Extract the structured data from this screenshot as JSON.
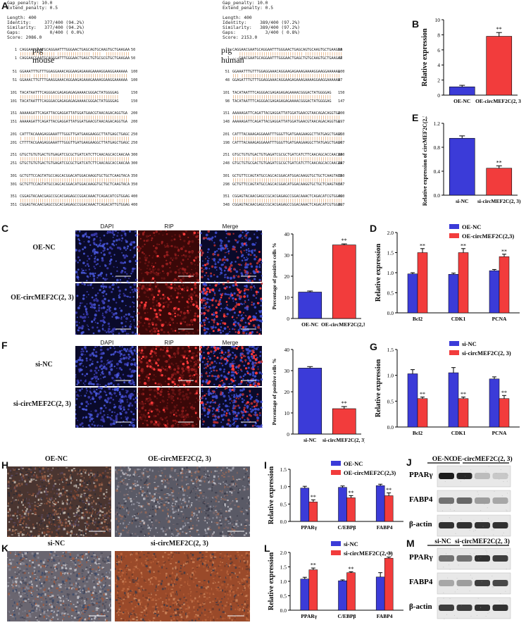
{
  "panels": {
    "A": "A",
    "B": "B",
    "C": "C",
    "D": "D",
    "E": "E",
    "F": "F",
    "G": "G",
    "H": "H",
    "I": "I",
    "J": "J",
    "K": "K",
    "L": "L",
    "M": "M"
  },
  "alignment_left": {
    "header": [
      "Gap_penalty: 10.0",
      "Extend_penalty: 0.5",
      "",
      "Length: 400",
      "Identity:     377/400 (94.2%)",
      "Similarity:   377/400 (94.2%)",
      "Gaps:           0/400 ( 0.0%)",
      "Score: 2086.0"
    ],
    "species_a": "pig",
    "species_b": "mouse",
    "blocks": [
      {
        "s1": "1",
        "e1": "50",
        "s2": "1",
        "e2": "50",
        "top": "CAGGAACGAATGCAGGAATTTGGGAACTGAGCAGTGCAAGTGCTGAAGAA",
        "bot": "CAGGAACGAATGCAGGGATTTGGGAACTGAGCTGTGCGCGTGCTGAAGAA"
      },
      {
        "s1": "51",
        "e1": "100",
        "s2": "51",
        "e2": "100",
        "top": "GGAAATTTGTTTGGAGGAAACAGGAAGAGAAAGAAAAGGAAGGAAAAAA",
        "bot": "GGAAACTTGTTTGAAGGAAACAGGAAGAGAAAGAAAAGGAAGGAAAAAA"
      },
      {
        "s1": "101",
        "e1": "150",
        "s2": "101",
        "e2": "150",
        "top": "TACATAATTTCAGGGACGAGAGAGAGAAAACGGGACTATGGGGAG",
        "bot": "TACATAATTTCAGGGACGAGAGAGAGAAAACGGGACTATGGGGAG"
      },
      {
        "s1": "151",
        "e1": "200",
        "s2": "151",
        "e2": "200",
        "top": "AAAAAGATTCAGATTACGAGGATTATGGATGAACGTAACAGACAGGTGA",
        "bot": "AAAAAGATTCAGATTACGAGGATTATGGATGAACGTAACAGACAGGTGA"
      },
      {
        "s1": "201",
        "e1": "250",
        "s2": "201",
        "e2": "250",
        "top": "CATTTACAAAGAGGAAATTTGGGTTGATGAAGAAGGCTTATGAGCTGAGC",
        "bot": "CTTTTACGAAGAGGAAATTTGGGTTGATGAAGAAGGCTTATGAGCTGAGC"
      },
      {
        "s1": "251",
        "e1": "300",
        "s2": "251",
        "e2": "300",
        "top": "GTGCTGTGTGACTGTGAGATCGCGCTGATCATCTTCAACAGCACCAACAA",
        "bot": "GTGCTGTGTGACTGTGAGATCGCGCTGATCATCTTCAACAGCACCAACAA"
      },
      {
        "s1": "301",
        "e1": "350",
        "s2": "301",
        "e2": "350",
        "top": "GCTGTTCCAGTATGCCAGCACGGACATGGACAAGGTGCTGCTCAAGTACA",
        "bot": "GCTGTTCCAGTATGCCAGCACGGACATGGACAAGGTGCTGCTCAAGTACA"
      },
      {
        "s1": "351",
        "e1": "400",
        "s2": "351",
        "e2": "400",
        "top": "CGGAGTACAACGAGCCGCACGAGAGCCGGACAAACTCAGACATCGTGGAG",
        "bot": "CGGAGTACAACGAGCCGCACGAGAGCCGGACAAACTCAGACATTGTGGAG"
      }
    ]
  },
  "alignment_right": {
    "header": [
      "Gap_penalty: 10.0",
      "Extend_penalty: 0.5",
      "",
      "Length: 400",
      "Identity:     389/400 (97.2%)",
      "Similarity:   389/400 (97.2%)",
      "Gaps:           3/400 ( 0.8%)",
      "Score: 2153.0"
    ],
    "species_a": "pig",
    "species_b": "human",
    "blocks": [
      {
        "s1": "1",
        "e1": "50",
        "s2": "1",
        "e2": "47",
        "top": "CAGGAACGAATGCAGGAATTTGGGAACTGAGCAGTGCAAGTGCTGAAGAA",
        "bot": "---GAACGAATGCAGGAATTTGGGAACTGAGCTGTGCAAGTGCTGAAGAA"
      },
      {
        "s1": "51",
        "e1": "100",
        "s2": "48",
        "e2": "97",
        "top": "GGAAATTTGTTTGGAGGAAACAGGAAGAGAAAGAAAAGGAAGGAAAAAA",
        "bot": "GGAGATTTGTTTGGAGGAAACAGGAAGAGAAAGAAAAGGAAGGAAAAAA"
      },
      {
        "s1": "101",
        "e1": "150",
        "s2": "98",
        "e2": "147",
        "top": "TACATAATTTCAGGGACGAGAGAGAGAAAACGGGACTATGGGGAG",
        "bot": "TACATAATTTCAGGGACGAGAGAGAGAAAACGGGACTATGGGGAG"
      },
      {
        "s1": "151",
        "e1": "200",
        "s2": "148",
        "e2": "197",
        "top": "AAAAAGATTCAGATTACGAGGATTATGGATGAACGTAACAGACAGGTGA",
        "bot": "AAAAAGATTCAGATTACGAGGATTATGGATGAACGTAACAGACAGGTGA"
      },
      {
        "s1": "201",
        "e1": "250",
        "s2": "198",
        "e2": "247",
        "top": "CATTTACAAAGAGGAAATTTGGGTTGATGAAGAAGGCTTATGAGCTGAGC",
        "bot": "CATTTACAAAGAGGAAATTTGGGTTGATGAAGAAGGCTTATGAGCTGAGC"
      },
      {
        "s1": "251",
        "e1": "300",
        "s2": "248",
        "e2": "297",
        "top": "GTGCTGTGTGACTGTGAGATCGCGCTGATCATCTTCAACAGCACCAACAA",
        "bot": "GTGCTGTGCGACTGTGAGATCGCGCTGATCATCTTCAACAGCACCAACAA"
      },
      {
        "s1": "301",
        "e1": "350",
        "s2": "298",
        "e2": "347",
        "top": "GCTGTTCCAGTATGCCAGCACGGACATGGACAAGGTGCTGCTCAAGTACA",
        "bot": "GCTGTTCCAGTATGCCAGCACGGACATGGACAAGGTGCTGCTCAAGTACA"
      },
      {
        "s1": "351",
        "e1": "400",
        "s2": "348",
        "e2": "397",
        "top": "CGGAGTACAACGAGCCGCACGAGAGCCGGACAAACTCAGACATCGTGGAG",
        "bot": "CGGAGTACAACGAGCCGCACGAGAGCCGGACAAACTCAGACATCGTGGAG"
      }
    ]
  },
  "micrographs": {
    "cols": [
      "DAPI",
      "RIP",
      "Merge"
    ],
    "C_rows": [
      "OE-NC",
      "OE-circMEF2C(2, 3)"
    ],
    "F_rows": [
      "si-NC",
      "si-circMEF2C(2, 3)"
    ],
    "H_titles": [
      "OE-NC",
      "OE-circMEF2C(2, 3)"
    ],
    "K_titles": [
      "si-NC",
      "si-circMEF2C(2, 3)"
    ]
  },
  "blots": {
    "J": {
      "groups": [
        "OE-NC",
        "OE-circMEF2C(2, 3)"
      ],
      "proteins": [
        "PPARγ",
        "FABP4",
        "β-actin"
      ]
    },
    "M": {
      "groups": [
        "si-NC",
        "si-circMEF2C(2, 3)"
      ],
      "proteins": [
        "PPARγ",
        "FABP4",
        "β-actin"
      ]
    }
  },
  "colors": {
    "blue": "#3b3bd8",
    "red": "#f23c3c"
  },
  "chart_data": [
    {
      "id": "B",
      "type": "bar",
      "categories": [
        "OE-NC",
        "OE-circMEF2C(2, 3)"
      ],
      "values": [
        1.1,
        7.8
      ],
      "errors": [
        0.2,
        0.5
      ],
      "colors": [
        "#3b3bd8",
        "#f23c3c"
      ],
      "ylabel": "Relative expression",
      "ylim": [
        0,
        10
      ],
      "yticks": [
        0,
        2,
        4,
        6,
        8,
        10
      ],
      "sig": [
        "",
        "**"
      ]
    },
    {
      "id": "E",
      "type": "bar",
      "categories": [
        "si-NC",
        "si-circMEF2C(2, 3)"
      ],
      "values": [
        0.95,
        0.45
      ],
      "errors": [
        0.04,
        0.04
      ],
      "colors": [
        "#3b3bd8",
        "#f23c3c"
      ],
      "ylabel": "Relative expression of circMEF2C(2,3)",
      "ylim": [
        0,
        1.2
      ],
      "yticks": [
        0.0,
        0.4,
        0.8,
        1.2
      ],
      "sig": [
        "",
        "**"
      ]
    },
    {
      "id": "C",
      "type": "bar",
      "categories": [
        "OE-NC",
        "OE-circMEF2C(2,3)"
      ],
      "values": [
        12.5,
        34.8
      ],
      "errors": [
        0.5,
        0.5
      ],
      "colors": [
        "#3b3bd8",
        "#f23c3c"
      ],
      "ylabel": "Percentage of positive cells %",
      "ylim": [
        0,
        40
      ],
      "yticks": [
        0,
        10,
        20,
        30,
        40
      ],
      "sig": [
        "",
        "**"
      ]
    },
    {
      "id": "F",
      "type": "bar",
      "categories": [
        "si-NC",
        "si-circMEF2C(2, 3)"
      ],
      "values": [
        31.2,
        12.0
      ],
      "errors": [
        0.7,
        1.0
      ],
      "colors": [
        "#3b3bd8",
        "#f23c3c"
      ],
      "ylabel": "Percentage of positive cells %",
      "ylim": [
        0,
        40
      ],
      "yticks": [
        0,
        10,
        20,
        30,
        40
      ],
      "sig": [
        "",
        "**"
      ]
    },
    {
      "id": "D",
      "type": "bar",
      "categories": [
        "Bcl2",
        "CDK1",
        "PCNA"
      ],
      "series": [
        {
          "name": "OE-NC",
          "values": [
            0.97,
            0.96,
            1.05
          ],
          "errors": [
            0.03,
            0.03,
            0.03
          ]
        },
        {
          "name": "OE-circMEF2C(2,3)",
          "values": [
            1.5,
            1.5,
            1.4
          ],
          "errors": [
            0.1,
            0.1,
            0.06
          ]
        }
      ],
      "ylabel": "Relative expression",
      "ylim": [
        0,
        2.0
      ],
      "yticks": [
        0.0,
        0.5,
        1.0,
        1.5,
        2.0
      ],
      "sig": [
        [
          "",
          "**"
        ],
        [
          "",
          "**"
        ],
        [
          "",
          "**"
        ]
      ]
    },
    {
      "id": "G",
      "type": "bar",
      "categories": [
        "Bcl2",
        "CDK1",
        "PCNA"
      ],
      "series": [
        {
          "name": "si-NC",
          "values": [
            1.03,
            1.05,
            0.93
          ],
          "errors": [
            0.08,
            0.1,
            0.04
          ]
        },
        {
          "name": "si-circMEF2C(2, 3)",
          "values": [
            0.55,
            0.55,
            0.55
          ],
          "errors": [
            0.03,
            0.03,
            0.06
          ]
        }
      ],
      "ylabel": "Relative expression",
      "ylim": [
        0,
        1.5
      ],
      "yticks": [
        0.0,
        0.5,
        1.0,
        1.5
      ],
      "sig": [
        [
          "",
          "**"
        ],
        [
          "",
          "**"
        ],
        [
          "",
          "**"
        ]
      ]
    },
    {
      "id": "I",
      "type": "bar",
      "categories": [
        "PPARγ",
        "C/EBPβ",
        "FABP4"
      ],
      "series": [
        {
          "name": "OE-NC",
          "values": [
            0.96,
            0.98,
            1.03
          ],
          "errors": [
            0.05,
            0.04,
            0.04
          ]
        },
        {
          "name": "OE-circMEF2C(2,3)",
          "values": [
            0.56,
            0.68,
            0.74
          ],
          "errors": [
            0.06,
            0.06,
            0.08
          ]
        }
      ],
      "ylabel": "Relative expression",
      "ylim": [
        0,
        1.5
      ],
      "yticks": [
        0.0,
        0.5,
        1.0,
        1.5
      ],
      "sig": [
        [
          "",
          "**"
        ],
        [
          "",
          "**"
        ],
        [
          "",
          "**"
        ]
      ]
    },
    {
      "id": "L",
      "type": "bar",
      "categories": [
        "PPARγ",
        "C/EBPβ",
        "FABP4"
      ],
      "series": [
        {
          "name": "si-NC",
          "values": [
            1.08,
            1.02,
            1.15
          ],
          "errors": [
            0.06,
            0.03,
            0.15
          ]
        },
        {
          "name": "si-circMEF2C(2, 3)",
          "values": [
            1.4,
            1.3,
            1.8
          ],
          "errors": [
            0.06,
            0.03,
            0.04
          ]
        }
      ],
      "ylabel": "Relative expression",
      "ylim": [
        0,
        2.0
      ],
      "yticks": [
        0.0,
        0.5,
        1.0,
        1.5,
        2.0
      ],
      "sig": [
        [
          "",
          "**"
        ],
        [
          "",
          "**"
        ],
        [
          "",
          "**"
        ]
      ]
    }
  ]
}
